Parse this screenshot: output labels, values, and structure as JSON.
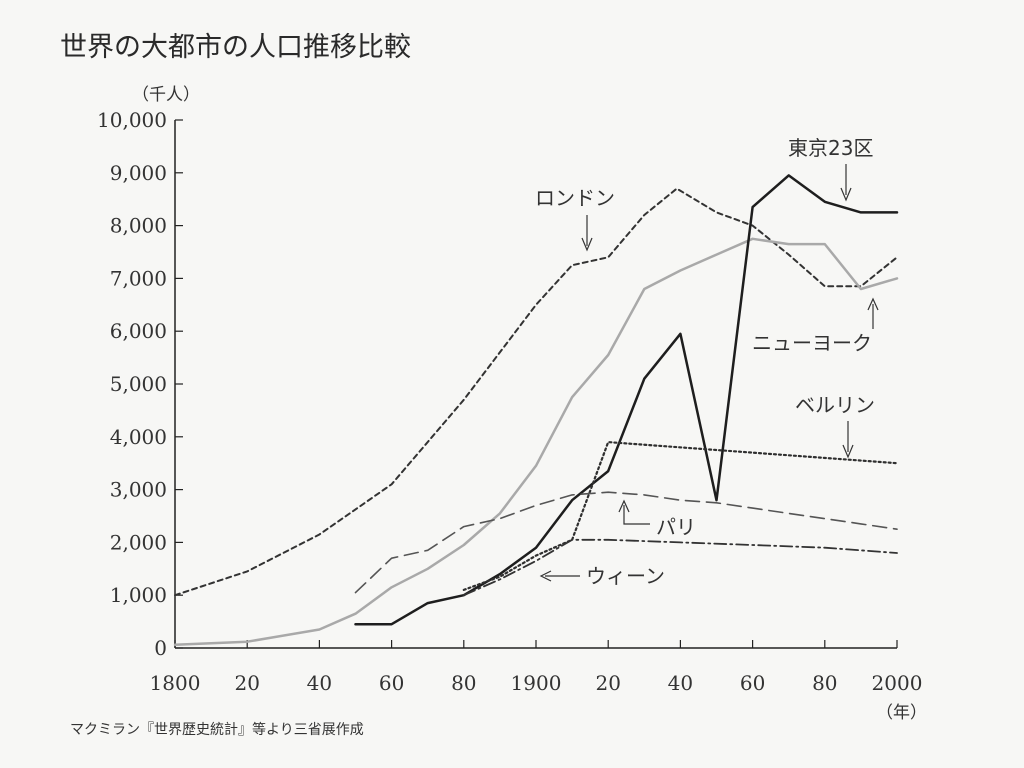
{
  "chart_data": {
    "type": "line",
    "title": "世界の大都市の人口推移比較",
    "y_unit_label": "（千人）",
    "x_unit_label": "（年）",
    "source": "マクミラン『世界歴史統計』等より三省展作成",
    "xlim": [
      1800,
      2000
    ],
    "ylim": [
      0,
      10000
    ],
    "x_tick_labels": [
      "1800",
      "20",
      "40",
      "60",
      "80",
      "1900",
      "20",
      "40",
      "60",
      "80",
      "2000"
    ],
    "x_tick_values": [
      1800,
      1820,
      1840,
      1860,
      1880,
      1900,
      1920,
      1940,
      1960,
      1980,
      2000
    ],
    "y_ticks": [
      "0",
      "1,000",
      "2,000",
      "3,000",
      "4,000",
      "5,000",
      "6,000",
      "7,000",
      "8,000",
      "9,000",
      "10,000"
    ],
    "y_tick_values": [
      0,
      1000,
      2000,
      3000,
      4000,
      5000,
      6000,
      7000,
      8000,
      9000,
      10000
    ],
    "series": [
      {
        "name": "ロンドン",
        "style": "dashed-dark",
        "color": "#333333",
        "x": [
          1800,
          1820,
          1840,
          1860,
          1880,
          1900,
          1910,
          1920,
          1930,
          1939,
          1950,
          1960,
          1970,
          1980,
          1990,
          2000
        ],
        "values": [
          1000,
          1450,
          2150,
          3100,
          4700,
          6500,
          7250,
          7400,
          8200,
          8700,
          8250,
          8000,
          7450,
          6850,
          6850,
          7400
        ]
      },
      {
        "name": "ニューヨーク",
        "style": "solid-gray",
        "color": "#a9a9a9",
        "x": [
          1800,
          1820,
          1840,
          1850,
          1860,
          1870,
          1880,
          1890,
          1900,
          1910,
          1920,
          1930,
          1940,
          1950,
          1960,
          1970,
          1980,
          1990,
          2000
        ],
        "values": [
          60,
          120,
          350,
          650,
          1150,
          1500,
          1950,
          2550,
          3450,
          4750,
          5550,
          6800,
          7150,
          7450,
          7750,
          7650,
          7650,
          6800,
          7000
        ]
      },
      {
        "name": "東京23区",
        "style": "solid-dark",
        "color": "#1e1e1e",
        "x": [
          1850,
          1860,
          1870,
          1880,
          1890,
          1900,
          1910,
          1920,
          1930,
          1940,
          1950,
          1960,
          1970,
          1980,
          1990,
          2000
        ],
        "values": [
          450,
          450,
          850,
          1000,
          1400,
          1900,
          2800,
          3350,
          5100,
          5950,
          2800,
          8350,
          8950,
          8450,
          8250,
          8250
        ]
      },
      {
        "name": "ベルリン",
        "style": "dotted",
        "color": "#2f2f2f",
        "x": [
          1880,
          1890,
          1900,
          1910,
          1920,
          2000
        ],
        "values": [
          1100,
          1350,
          1750,
          2050,
          3900,
          3500
        ]
      },
      {
        "name": "パリ",
        "style": "long-dash",
        "color": "#555555",
        "x": [
          1850,
          1860,
          1870,
          1880,
          1890,
          1900,
          1910,
          1920,
          1930,
          1940,
          1950,
          1960,
          1970,
          1980,
          1990,
          2000
        ],
        "values": [
          1050,
          1700,
          1850,
          2300,
          2450,
          2700,
          2900,
          2950,
          2900,
          2800,
          2750,
          2650,
          2550,
          2450,
          2350,
          2250
        ]
      },
      {
        "name": "ウィーン",
        "style": "dash-dot",
        "color": "#333333",
        "x": [
          1880,
          1890,
          1900,
          1910,
          1920,
          1940,
          1960,
          1980,
          2000
        ],
        "values": [
          1000,
          1300,
          1650,
          2050,
          2050,
          2000,
          1950,
          1900,
          1800
        ]
      }
    ],
    "annotations": [
      "ロンドン",
      "東京23区",
      "ニューヨーク",
      "ベルリン",
      "パリ",
      "ウィーン"
    ]
  }
}
